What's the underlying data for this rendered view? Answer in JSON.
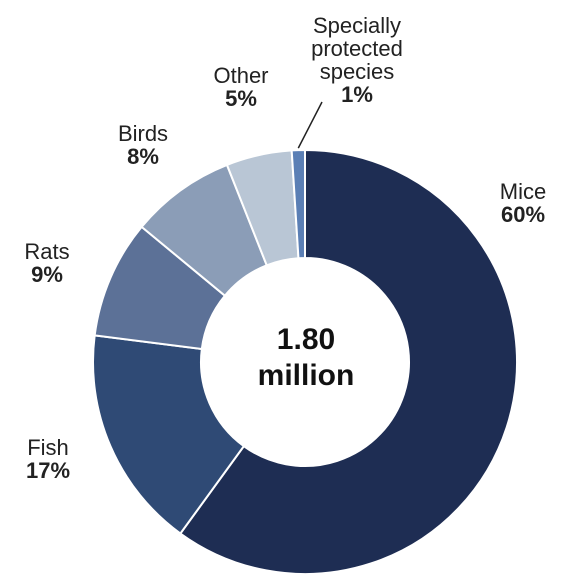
{
  "chart_data": {
    "type": "pie",
    "title": "",
    "donut": true,
    "center_label": [
      "1.80",
      "million"
    ],
    "slices": [
      {
        "label": "Mice",
        "percent_label": "60%",
        "value": 60,
        "color": "#1e2d53"
      },
      {
        "label": "Fish",
        "percent_label": "17%",
        "value": 17,
        "color": "#2f4a75"
      },
      {
        "label": "Rats",
        "percent_label": "9%",
        "value": 9,
        "color": "#5c7197"
      },
      {
        "label": "Birds",
        "percent_label": "8%",
        "value": 8,
        "color": "#8b9db7"
      },
      {
        "label": "Other",
        "percent_label": "5%",
        "value": 5,
        "color": "#b9c6d5"
      },
      {
        "label": "Specially protected species",
        "label_lines": [
          "Specially",
          "protected",
          "species"
        ],
        "percent_label": "1%",
        "value": 1,
        "color": "#5b7fb5"
      }
    ]
  }
}
